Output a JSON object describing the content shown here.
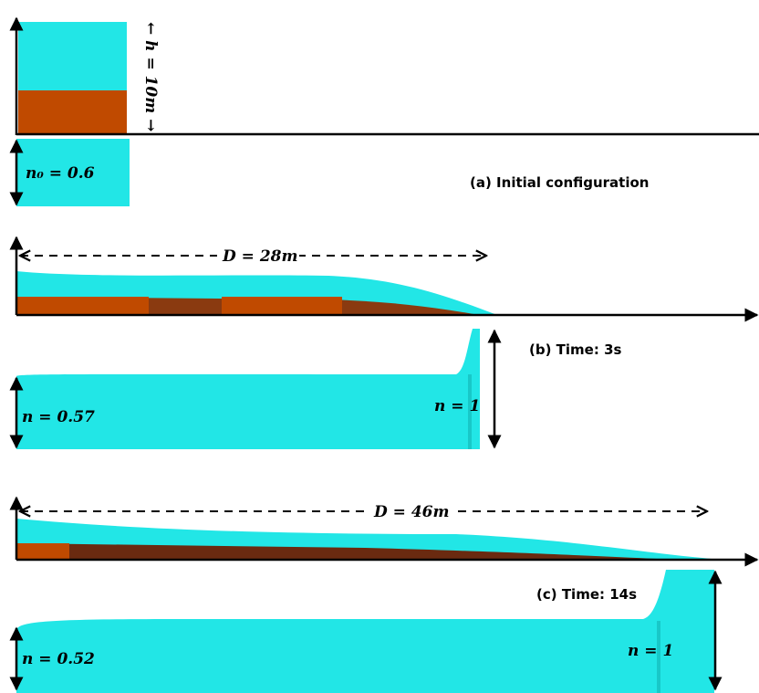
{
  "panels": [
    {
      "caption": "(a) Initial configuration",
      "height_label": "← h = 10m →",
      "porosity_label": "n₀ = 0.6"
    },
    {
      "caption": "(b) Time: 3s",
      "distance_label": "D = 28m",
      "porosity_label": "n = 0.57",
      "front_label": "n = 1"
    },
    {
      "caption": "(c) Time: 14s",
      "distance_label": "D = 46m",
      "porosity_label": "n = 0.52",
      "front_label": "n = 1"
    }
  ]
}
